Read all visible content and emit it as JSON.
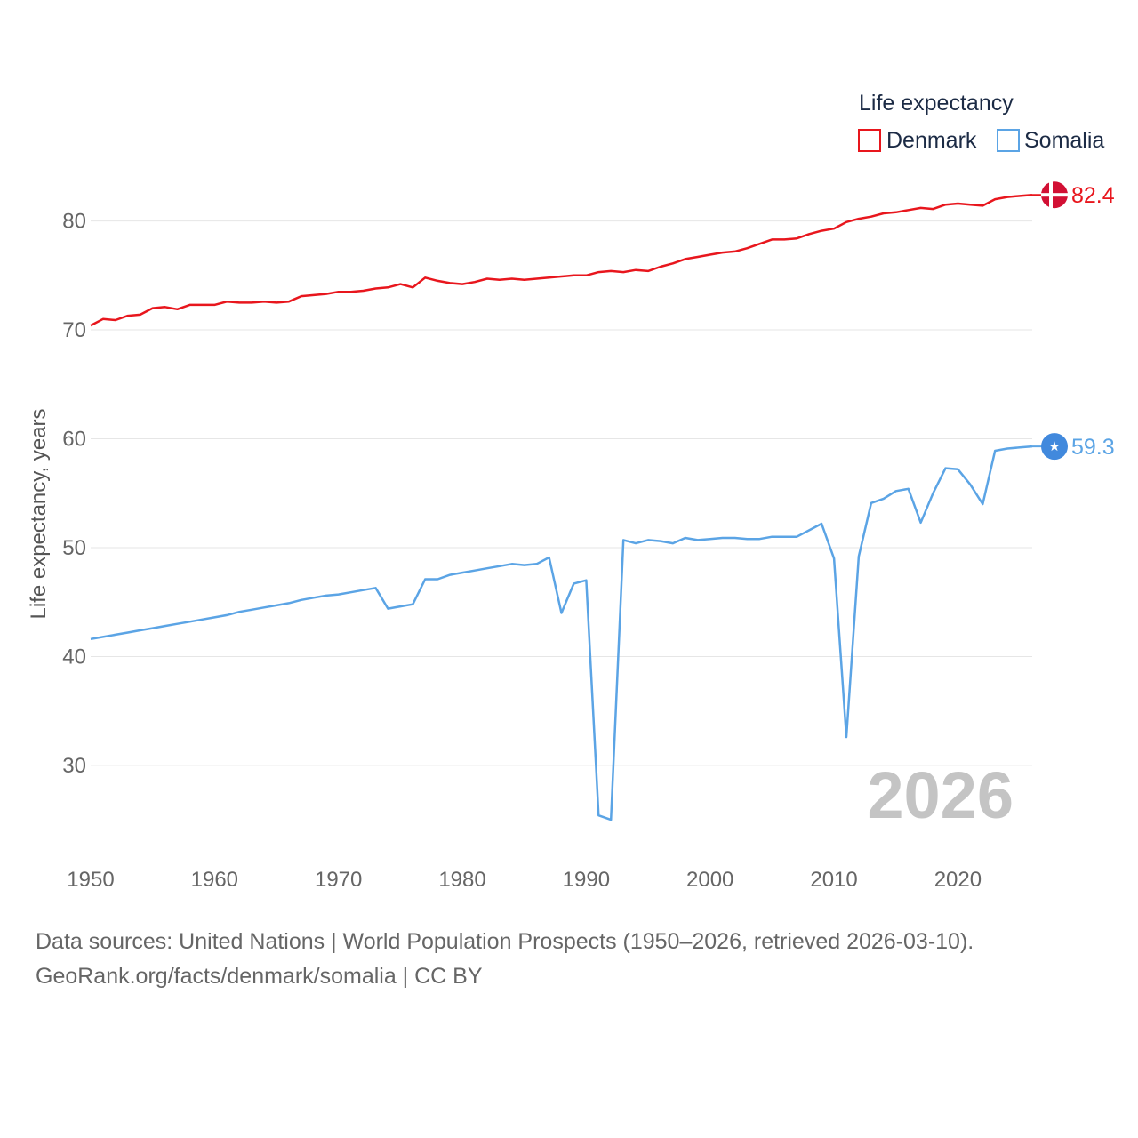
{
  "chart_data": {
    "type": "line",
    "title": "",
    "xlabel": "",
    "ylabel": "Life expectancy, years",
    "xlim": [
      1950,
      2026
    ],
    "ylim": [
      21.5,
      85.6
    ],
    "y_ticks": [
      30,
      40,
      50,
      60,
      70,
      80
    ],
    "x_ticks": [
      1950,
      1960,
      1970,
      1980,
      1990,
      2000,
      2010,
      2020
    ],
    "grid": true,
    "legend": {
      "title": "Life expectancy",
      "position": "top-right"
    },
    "year_label": "2026",
    "series": [
      {
        "name": "Denmark",
        "color": "#e8161d",
        "end_label": "82.4",
        "end_icon": "denmark-flag-icon",
        "x": [
          1950,
          1951,
          1952,
          1953,
          1954,
          1955,
          1956,
          1957,
          1958,
          1959,
          1960,
          1961,
          1962,
          1963,
          1964,
          1965,
          1966,
          1967,
          1968,
          1969,
          1970,
          1971,
          1972,
          1973,
          1974,
          1975,
          1976,
          1977,
          1978,
          1979,
          1980,
          1981,
          1982,
          1983,
          1984,
          1985,
          1986,
          1987,
          1988,
          1989,
          1990,
          1991,
          1992,
          1993,
          1994,
          1995,
          1996,
          1997,
          1998,
          1999,
          2000,
          2001,
          2002,
          2003,
          2004,
          2005,
          2006,
          2007,
          2008,
          2009,
          2010,
          2011,
          2012,
          2013,
          2014,
          2015,
          2016,
          2017,
          2018,
          2019,
          2020,
          2021,
          2022,
          2023,
          2024,
          2025,
          2026
        ],
        "values": [
          70.4,
          71.0,
          70.9,
          71.3,
          71.4,
          72.0,
          72.1,
          71.9,
          72.3,
          72.3,
          72.3,
          72.6,
          72.5,
          72.5,
          72.6,
          72.5,
          72.6,
          73.1,
          73.2,
          73.3,
          73.5,
          73.5,
          73.6,
          73.8,
          73.9,
          74.2,
          73.9,
          74.8,
          74.5,
          74.3,
          74.2,
          74.4,
          74.7,
          74.6,
          74.7,
          74.6,
          74.7,
          74.8,
          74.9,
          75.0,
          75.0,
          75.3,
          75.4,
          75.3,
          75.5,
          75.4,
          75.8,
          76.1,
          76.5,
          76.7,
          76.9,
          77.1,
          77.2,
          77.5,
          77.9,
          78.3,
          78.3,
          78.4,
          78.8,
          79.1,
          79.3,
          79.9,
          80.2,
          80.4,
          80.7,
          80.8,
          81.0,
          81.2,
          81.1,
          81.5,
          81.6,
          81.5,
          81.4,
          82.0,
          82.2,
          82.3,
          82.4
        ]
      },
      {
        "name": "Somalia",
        "color": "#5ba4e5",
        "end_label": "59.3",
        "end_icon": "somalia-flag-icon",
        "x": [
          1950,
          1951,
          1952,
          1953,
          1954,
          1955,
          1956,
          1957,
          1958,
          1959,
          1960,
          1961,
          1962,
          1963,
          1964,
          1965,
          1966,
          1967,
          1968,
          1969,
          1970,
          1971,
          1972,
          1973,
          1974,
          1975,
          1976,
          1977,
          1978,
          1979,
          1980,
          1981,
          1982,
          1983,
          1984,
          1985,
          1986,
          1987,
          1988,
          1989,
          1990,
          1991,
          1992,
          1993,
          1994,
          1995,
          1996,
          1997,
          1998,
          1999,
          2000,
          2001,
          2002,
          2003,
          2004,
          2005,
          2006,
          2007,
          2008,
          2009,
          2010,
          2011,
          2012,
          2013,
          2014,
          2015,
          2016,
          2017,
          2018,
          2019,
          2020,
          2021,
          2022,
          2023,
          2024,
          2025,
          2026
        ],
        "values": [
          41.6,
          41.8,
          42.0,
          42.2,
          42.4,
          42.6,
          42.8,
          43.0,
          43.2,
          43.4,
          43.6,
          43.8,
          44.1,
          44.3,
          44.5,
          44.7,
          44.9,
          45.2,
          45.4,
          45.6,
          45.7,
          45.9,
          46.1,
          46.3,
          44.4,
          44.6,
          44.8,
          47.1,
          47.1,
          47.5,
          47.7,
          47.9,
          48.1,
          48.3,
          48.5,
          48.4,
          48.5,
          49.1,
          44.0,
          46.7,
          47.0,
          25.4,
          25.0,
          50.7,
          50.4,
          50.7,
          50.6,
          50.4,
          50.9,
          50.7,
          50.8,
          50.9,
          50.9,
          50.8,
          50.8,
          51.0,
          51.0,
          51.0,
          51.6,
          52.2,
          49.0,
          32.6,
          49.2,
          54.1,
          54.5,
          55.2,
          55.4,
          52.3,
          55.0,
          57.3,
          57.2,
          55.8,
          54.0,
          58.9,
          59.1,
          59.2,
          59.3
        ]
      }
    ]
  },
  "source": {
    "line1": "Data sources: United Nations | World Population Prospects (1950–2026, retrieved 2026-03-10).",
    "line2": "GeoRank.org/facts/denmark/somalia | CC BY"
  }
}
